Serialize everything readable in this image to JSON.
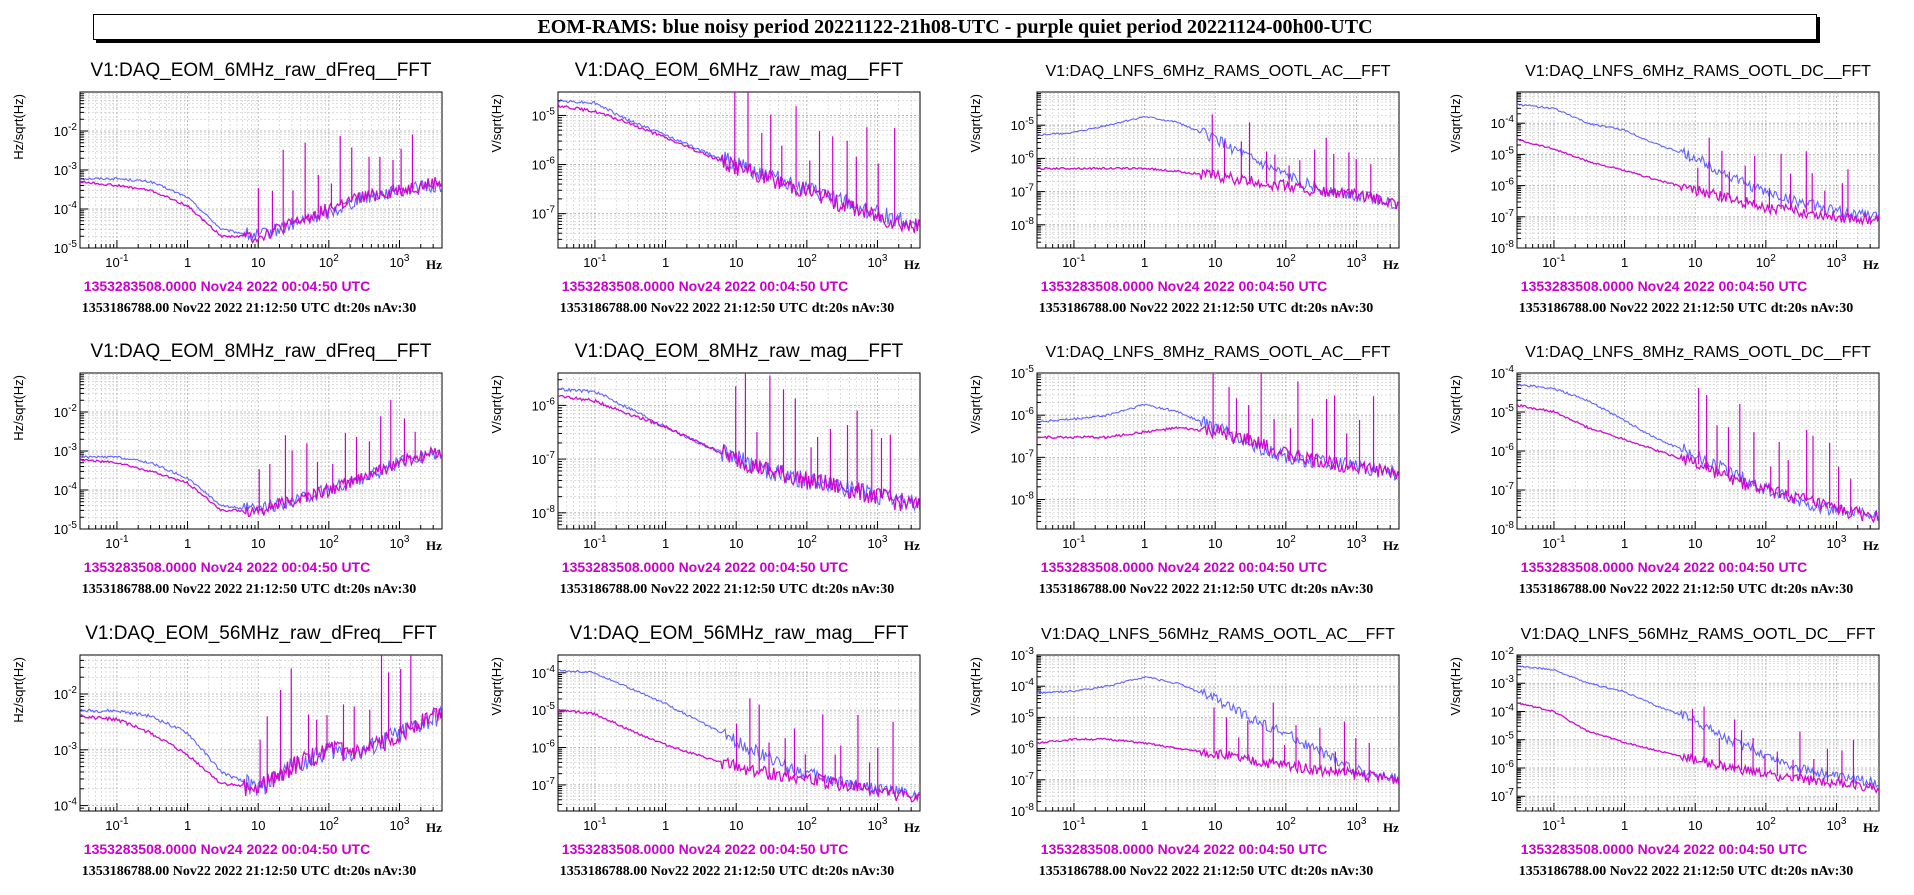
{
  "banner": {
    "title": "EOM-RAMS: blue noisy period 20221122-21h08-UTC - purple quiet period 20221124-00h00-UTC"
  },
  "colors": {
    "noisy": "#5b5bff",
    "quiet": "#cc00cc",
    "grid": "#aaaaaa",
    "axis": "#000000"
  },
  "chart_data": [
    {
      "type": "line",
      "title": "V1:DAQ_EOM_6MHz_raw_dFreq__FFT",
      "ylabel": "Hz/sqrt(Hz)",
      "xlabel": "Hz",
      "xscale": "log",
      "yscale": "log",
      "xlim": [
        0.03,
        4000
      ],
      "ylim": [
        1e-05,
        0.1
      ],
      "x_ticks": [
        "10^-1",
        "1",
        "10",
        "10^2",
        "10^3"
      ],
      "y_ticks": [
        "10^-5",
        "10^-4",
        "10^-3",
        "10^-2"
      ],
      "stamp_quiet": "1353283508.0000 Nov24 2022 00:04:50 UTC",
      "stamp_noisy": "1353186788.00 Nov22 2022 21:12:50 UTC dt:20s nAv:30",
      "series": [
        {
          "x": [
            0.03,
            0.1,
            0.3,
            1,
            3,
            10,
            30,
            100,
            300,
            1000,
            4000
          ],
          "values": [
            0.0006,
            0.0006,
            0.0005,
            0.0002,
            3e-05,
            2e-05,
            4e-05,
            8e-05,
            0.0002,
            0.0003,
            0.0004
          ]
        },
        {
          "x": [
            0.03,
            0.1,
            0.3,
            1,
            3,
            10,
            30,
            100,
            300,
            1000,
            4000
          ],
          "values": [
            0.0005,
            0.0004,
            0.0003,
            0.00012,
            2e-05,
            2e-05,
            4e-05,
            0.0001,
            0.0002,
            0.0003,
            0.0005
          ]
        }
      ]
    },
    {
      "type": "line",
      "title": "V1:DAQ_EOM_6MHz_raw_mag__FFT",
      "ylabel": "V/sqrt(Hz)",
      "xlabel": "Hz",
      "xscale": "log",
      "yscale": "log",
      "xlim": [
        0.03,
        4000
      ],
      "ylim": [
        2e-08,
        3e-05
      ],
      "x_ticks": [
        "10^-1",
        "1",
        "10",
        "10^2",
        "10^3"
      ],
      "y_ticks": [
        "10^-7",
        "10^-6",
        "10^-5"
      ],
      "stamp_quiet": "1353283508.0000 Nov24 2022 00:04:50 UTC",
      "stamp_noisy": "1353186788.00 Nov22 2022 21:12:50 UTC dt:20s nAv:30",
      "series": [
        {
          "x": [
            0.03,
            0.1,
            0.3,
            1,
            3,
            10,
            30,
            100,
            300,
            1000,
            4000
          ],
          "values": [
            2e-05,
            1.8e-05,
            8e-06,
            4e-06,
            2e-06,
            1e-06,
            6e-07,
            3e-07,
            1.8e-07,
            1e-07,
            6e-08
          ]
        },
        {
          "x": [
            0.03,
            0.1,
            0.3,
            1,
            3,
            10,
            30,
            100,
            300,
            1000,
            4000
          ],
          "values": [
            1.6e-05,
            1.2e-05,
            7e-06,
            3.5e-06,
            1.8e-06,
            9e-07,
            5e-07,
            3e-07,
            1.6e-07,
            9e-08,
            5e-08
          ]
        }
      ]
    },
    {
      "type": "line",
      "title": "V1:DAQ_LNFS_6MHz_RAMS_OOTL_AC__FFT",
      "ylabel": "V/sqrt(Hz)",
      "xlabel": "Hz",
      "xscale": "log",
      "yscale": "log",
      "xlim": [
        0.03,
        4000
      ],
      "ylim": [
        2e-09,
        0.0001
      ],
      "x_ticks": [
        "10^-1",
        "1",
        "10",
        "10^2",
        "10^3"
      ],
      "y_ticks": [
        "10^-8",
        "10^-7",
        "10^-6",
        "10^-5"
      ],
      "stamp_quiet": "1353283508.0000 Nov24 2022 00:04:50 UTC",
      "stamp_noisy": "1353186788.00 Nov22 2022 21:12:50 UTC dt:20s nAv:30",
      "series": [
        {
          "x": [
            0.03,
            0.1,
            0.3,
            1,
            3,
            10,
            30,
            100,
            300,
            1000,
            4000
          ],
          "values": [
            5e-06,
            6e-06,
            1e-05,
            1.8e-05,
            1.2e-05,
            4e-06,
            1e-06,
            3e-07,
            1.2e-07,
            8e-08,
            4e-08
          ]
        },
        {
          "x": [
            0.03,
            0.1,
            0.3,
            1,
            3,
            10,
            30,
            100,
            300,
            1000,
            4000
          ],
          "values": [
            5e-07,
            5e-07,
            5e-07,
            5e-07,
            4e-07,
            3e-07,
            2e-07,
            1.5e-07,
            1e-07,
            8e-08,
            4e-08
          ]
        }
      ]
    },
    {
      "type": "line",
      "title": "V1:DAQ_LNFS_6MHz_RAMS_OOTL_DC__FFT",
      "ylabel": "V/sqrt(Hz)",
      "xlabel": "Hz",
      "xscale": "log",
      "yscale": "log",
      "xlim": [
        0.03,
        4000
      ],
      "ylim": [
        1e-08,
        0.001
      ],
      "x_ticks": [
        "10^-1",
        "1",
        "10",
        "10^2",
        "10^3"
      ],
      "y_ticks": [
        "10^-8",
        "10^-7",
        "10^-6",
        "10^-5",
        "10^-4"
      ],
      "stamp_quiet": "1353283508.0000 Nov24 2022 00:04:50 UTC",
      "stamp_noisy": "1353186788.00 Nov22 2022 21:12:50 UTC dt:20s nAv:30",
      "series": [
        {
          "x": [
            0.03,
            0.1,
            0.3,
            1,
            3,
            10,
            30,
            100,
            300,
            1000,
            4000
          ],
          "values": [
            0.0004,
            0.0003,
            0.0001,
            6e-05,
            2e-05,
            8e-06,
            2e-06,
            6e-07,
            3e-07,
            1.5e-07,
            1e-07
          ]
        },
        {
          "x": [
            0.03,
            0.1,
            0.3,
            1,
            3,
            10,
            30,
            100,
            300,
            1000,
            4000
          ],
          "values": [
            3e-05,
            1.5e-05,
            6e-06,
            3e-06,
            1.5e-06,
            7e-07,
            4e-07,
            2e-07,
            1.5e-07,
            1e-07,
            8e-08
          ]
        }
      ]
    },
    {
      "type": "line",
      "title": "V1:DAQ_EOM_8MHz_raw_dFreq__FFT",
      "ylabel": "Hz/sqrt(Hz)",
      "xlabel": "Hz",
      "xscale": "log",
      "yscale": "log",
      "xlim": [
        0.03,
        4000
      ],
      "ylim": [
        1e-05,
        0.1
      ],
      "x_ticks": [
        "10^-1",
        "1",
        "10",
        "10^2",
        "10^3"
      ],
      "y_ticks": [
        "10^-5",
        "10^-4",
        "10^-3",
        "10^-2"
      ],
      "stamp_quiet": "1353283508.0000 Nov24 2022 00:04:50 UTC",
      "stamp_noisy": "1353186788.00 Nov22 2022 21:12:50 UTC dt:20s nAv:30",
      "series": [
        {
          "x": [
            0.03,
            0.1,
            0.3,
            1,
            3,
            10,
            30,
            100,
            300,
            1000,
            4000
          ],
          "values": [
            0.0007,
            0.0007,
            0.0005,
            0.0002,
            4e-05,
            3e-05,
            5e-05,
            0.0001,
            0.0002,
            0.0005,
            0.001
          ]
        },
        {
          "x": [
            0.03,
            0.1,
            0.3,
            1,
            3,
            10,
            30,
            100,
            300,
            1000,
            4000
          ],
          "values": [
            0.0006,
            0.0005,
            0.0003,
            0.00015,
            3e-05,
            3e-05,
            5e-05,
            0.0001,
            0.0002,
            0.0005,
            0.001
          ]
        }
      ]
    },
    {
      "type": "line",
      "title": "V1:DAQ_EOM_8MHz_raw_mag__FFT",
      "ylabel": "V/sqrt(Hz)",
      "xlabel": "Hz",
      "xscale": "log",
      "yscale": "log",
      "xlim": [
        0.03,
        4000
      ],
      "ylim": [
        5e-09,
        4e-06
      ],
      "x_ticks": [
        "10^-1",
        "1",
        "10",
        "10^2",
        "10^3"
      ],
      "y_ticks": [
        "10^-8",
        "10^-7",
        "10^-6"
      ],
      "stamp_quiet": "1353283508.0000 Nov24 2022 00:04:50 UTC",
      "stamp_noisy": "1353186788.00 Nov22 2022 21:12:50 UTC dt:20s nAv:30",
      "series": [
        {
          "x": [
            0.03,
            0.1,
            0.3,
            1,
            3,
            10,
            30,
            100,
            300,
            1000,
            4000
          ],
          "values": [
            2e-06,
            1.8e-06,
            9e-07,
            4e-07,
            2e-07,
            1e-07,
            6e-08,
            4e-08,
            3e-08,
            2e-08,
            1.5e-08
          ]
        },
        {
          "x": [
            0.03,
            0.1,
            0.3,
            1,
            3,
            10,
            30,
            100,
            300,
            1000,
            4000
          ],
          "values": [
            1.5e-06,
            1.2e-06,
            7e-07,
            4e-07,
            2e-07,
            1e-07,
            6e-08,
            4e-08,
            3e-08,
            2e-08,
            1.3e-08
          ]
        }
      ]
    },
    {
      "type": "line",
      "title": "V1:DAQ_LNFS_8MHz_RAMS_OOTL_AC__FFT",
      "ylabel": "V/sqrt(Hz)",
      "xlabel": "Hz",
      "xscale": "log",
      "yscale": "log",
      "xlim": [
        0.03,
        4000
      ],
      "ylim": [
        2e-09,
        1e-05
      ],
      "x_ticks": [
        "10^-1",
        "1",
        "10",
        "10^2",
        "10^3"
      ],
      "y_ticks": [
        "10^-8",
        "10^-7",
        "10^-6",
        "10^-5"
      ],
      "stamp_quiet": "1353283508.0000 Nov24 2022 00:04:50 UTC",
      "stamp_noisy": "1353186788.00 Nov22 2022 21:12:50 UTC dt:20s nAv:30",
      "series": [
        {
          "x": [
            0.03,
            0.1,
            0.3,
            1,
            3,
            10,
            30,
            100,
            300,
            1000,
            4000
          ],
          "values": [
            7e-07,
            8e-07,
            1e-06,
            1.8e-06,
            1.2e-06,
            5e-07,
            2e-07,
            1e-07,
            8e-08,
            6e-08,
            4e-08
          ]
        },
        {
          "x": [
            0.03,
            0.1,
            0.3,
            1,
            3,
            10,
            30,
            100,
            300,
            1000,
            4000
          ],
          "values": [
            3e-07,
            3e-07,
            3e-07,
            4e-07,
            5e-07,
            4e-07,
            2.5e-07,
            1.2e-07,
            8e-08,
            6e-08,
            4e-08
          ]
        }
      ]
    },
    {
      "type": "line",
      "title": "V1:DAQ_LNFS_8MHz_RAMS_OOTL_DC__FFT",
      "ylabel": "V/sqrt(Hz)",
      "xlabel": "Hz",
      "xscale": "log",
      "yscale": "log",
      "xlim": [
        0.03,
        4000
      ],
      "ylim": [
        1e-08,
        0.0001
      ],
      "x_ticks": [
        "10^-1",
        "1",
        "10",
        "10^2",
        "10^3"
      ],
      "y_ticks": [
        "10^-8",
        "10^-7",
        "10^-6",
        "10^-5",
        "10^-4"
      ],
      "stamp_quiet": "1353283508.0000 Nov24 2022 00:04:50 UTC",
      "stamp_noisy": "1353186788.00 Nov22 2022 21:12:50 UTC dt:20s nAv:30",
      "series": [
        {
          "x": [
            0.03,
            0.1,
            0.3,
            1,
            3,
            10,
            30,
            100,
            300,
            1000,
            4000
          ],
          "values": [
            5e-05,
            4e-05,
            2e-05,
            6e-06,
            2e-06,
            8e-07,
            3e-07,
            1e-07,
            5e-08,
            3e-08,
            2e-08
          ]
        },
        {
          "x": [
            0.03,
            0.1,
            0.3,
            1,
            3,
            10,
            30,
            100,
            300,
            1000,
            4000
          ],
          "values": [
            1.5e-05,
            1e-05,
            4e-06,
            2e-06,
            1e-06,
            5e-07,
            2e-07,
            1e-07,
            6e-08,
            3e-08,
            2e-08
          ]
        }
      ]
    },
    {
      "type": "line",
      "title": "V1:DAQ_EOM_56MHz_raw_dFreq__FFT",
      "ylabel": "Hz/sqrt(Hz)",
      "xlabel": "Hz",
      "xscale": "log",
      "yscale": "log",
      "xlim": [
        0.03,
        4000
      ],
      "ylim": [
        8e-05,
        0.05
      ],
      "x_ticks": [
        "10^-1",
        "1",
        "10",
        "10^2",
        "10^3"
      ],
      "y_ticks": [
        "10^-4",
        "10^-3",
        "10^-2"
      ],
      "stamp_quiet": "1353283508.0000 Nov24 2022 00:04:50 UTC",
      "stamp_noisy": "1353186788.00 Nov22 2022 21:12:50 UTC dt:20s nAv:30",
      "series": [
        {
          "x": [
            0.03,
            0.1,
            0.3,
            1,
            3,
            10,
            30,
            100,
            300,
            1000,
            4000
          ],
          "values": [
            0.005,
            0.005,
            0.004,
            0.002,
            0.0004,
            0.0002,
            0.0005,
            0.001,
            0.0009,
            0.002,
            0.004
          ]
        },
        {
          "x": [
            0.03,
            0.1,
            0.3,
            1,
            3,
            10,
            30,
            100,
            300,
            1000,
            4000
          ],
          "values": [
            0.004,
            0.0035,
            0.002,
            0.0008,
            0.00025,
            0.0002,
            0.0005,
            0.001,
            0.0008,
            0.002,
            0.005
          ]
        }
      ]
    },
    {
      "type": "line",
      "title": "V1:DAQ_EOM_56MHz_raw_mag__FFT",
      "ylabel": "V/sqrt(Hz)",
      "xlabel": "Hz",
      "xscale": "log",
      "yscale": "log",
      "xlim": [
        0.03,
        4000
      ],
      "ylim": [
        2e-08,
        0.0003
      ],
      "x_ticks": [
        "10^-1",
        "1",
        "10",
        "10^2",
        "10^3"
      ],
      "y_ticks": [
        "10^-7",
        "10^-6",
        "10^-5",
        "10^-4"
      ],
      "stamp_quiet": "1353283508.0000 Nov24 2022 00:04:50 UTC",
      "stamp_noisy": "1353186788.00 Nov22 2022 21:12:50 UTC dt:20s nAv:30",
      "series": [
        {
          "x": [
            0.03,
            0.1,
            0.3,
            1,
            3,
            10,
            30,
            100,
            300,
            1000,
            4000
          ],
          "values": [
            0.00012,
            0.0001,
            4e-05,
            1.5e-05,
            5e-06,
            1.5e-06,
            5e-07,
            2e-07,
            1.2e-07,
            8e-08,
            5e-08
          ]
        },
        {
          "x": [
            0.03,
            0.1,
            0.3,
            1,
            3,
            10,
            30,
            100,
            300,
            1000,
            4000
          ],
          "values": [
            1e-05,
            8e-06,
            3e-06,
            1.2e-06,
            6e-07,
            3e-07,
            2e-07,
            1.5e-07,
            1e-07,
            7e-08,
            4e-08
          ]
        }
      ]
    },
    {
      "type": "line",
      "title": "V1:DAQ_LNFS_56MHz_RAMS_OOTL_AC__FFT",
      "ylabel": "V/sqrt(Hz)",
      "xlabel": "Hz",
      "xscale": "log",
      "yscale": "log",
      "xlim": [
        0.03,
        4000
      ],
      "ylim": [
        1e-08,
        0.001
      ],
      "x_ticks": [
        "10^-1",
        "1",
        "10",
        "10^2",
        "10^3"
      ],
      "y_ticks": [
        "10^-8",
        "10^-7",
        "10^-6",
        "10^-5",
        "10^-4",
        "10^-3"
      ],
      "stamp_quiet": "1353283508.0000 Nov24 2022 00:04:50 UTC",
      "stamp_noisy": "1353186788.00 Nov22 2022 21:12:50 UTC dt:20s nAv:30",
      "series": [
        {
          "x": [
            0.03,
            0.1,
            0.3,
            1,
            3,
            10,
            30,
            100,
            300,
            1000,
            4000
          ],
          "values": [
            6e-05,
            7e-05,
            0.0001,
            0.0002,
            0.00012,
            4e-05,
            1e-05,
            3e-06,
            8e-07,
            2e-07,
            1e-07
          ]
        },
        {
          "x": [
            0.03,
            0.1,
            0.3,
            1,
            3,
            10,
            30,
            100,
            300,
            1000,
            4000
          ],
          "values": [
            1.5e-06,
            2e-06,
            2e-06,
            1.5e-06,
            1e-06,
            7e-07,
            4e-07,
            3e-07,
            2e-07,
            1.5e-07,
            1e-07
          ]
        }
      ]
    },
    {
      "type": "line",
      "title": "V1:DAQ_LNFS_56MHz_RAMS_OOTL_DC__FFT",
      "ylabel": "V/sqrt(Hz)",
      "xlabel": "Hz",
      "xscale": "log",
      "yscale": "log",
      "xlim": [
        0.03,
        4000
      ],
      "ylim": [
        3e-08,
        0.01
      ],
      "x_ticks": [
        "10^-1",
        "1",
        "10",
        "10^2",
        "10^3"
      ],
      "y_ticks": [
        "10^-7",
        "10^-6",
        "10^-5",
        "10^-4",
        "10^-3",
        "10^-2"
      ],
      "stamp_quiet": "1353283508.0000 Nov24 2022 00:04:50 UTC",
      "stamp_noisy": "1353186788.00 Nov22 2022 21:12:50 UTC dt:20s nAv:30",
      "series": [
        {
          "x": [
            0.03,
            0.1,
            0.3,
            1,
            3,
            10,
            30,
            100,
            300,
            1000,
            4000
          ],
          "values": [
            0.004,
            0.003,
            0.001,
            0.0005,
            0.00015,
            5e-05,
            1e-05,
            3e-06,
            1e-06,
            5e-07,
            3e-07
          ]
        },
        {
          "x": [
            0.03,
            0.1,
            0.3,
            1,
            3,
            10,
            30,
            100,
            300,
            1000,
            4000
          ],
          "values": [
            0.0002,
            0.0001,
            2e-05,
            8e-06,
            4e-06,
            2e-06,
            1e-06,
            6e-07,
            4e-07,
            3e-07,
            2e-07
          ]
        }
      ]
    }
  ]
}
